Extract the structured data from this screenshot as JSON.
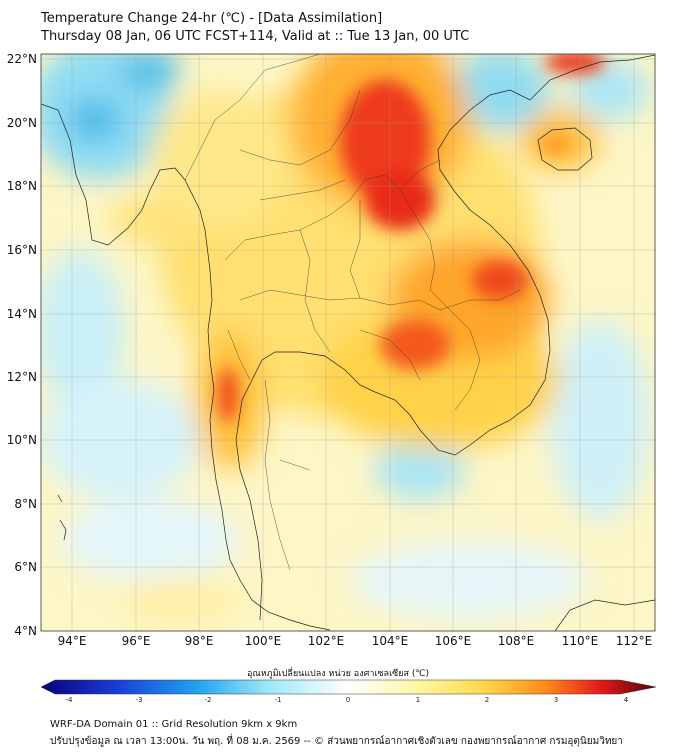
{
  "header": {
    "title_line1": "Temperature Change 24-hr (℃) - [Data Assimilation]",
    "title_line2": "Thursday 08 Jan, 06 UTC FCST+114, Valid at :: Tue 13 Jan, 00 UTC"
  },
  "map": {
    "lat_labels": [
      "22°N",
      "20°N",
      "18°N",
      "16°N",
      "14°N",
      "12°N",
      "10°N",
      "8°N",
      "6°N",
      "4°N"
    ],
    "lon_labels": [
      "94°E",
      "96°E",
      "98°E",
      "100°E",
      "102°E",
      "104°E",
      "106°E",
      "108°E",
      "110°E",
      "112°E"
    ]
  },
  "colorbar": {
    "title": "อุณหภูมิเปลี่ยนแปลง หน่วย องศาเซลเซียส (℃)",
    "ticks": [
      "-4",
      "-3",
      "-2",
      "-1",
      "0",
      "1",
      "2",
      "3",
      "4"
    ],
    "min": -4,
    "max": 4,
    "low_color": "#08007a",
    "zero_color": "#ffffff",
    "high_color": "#5a0000"
  },
  "footer": {
    "line1": "WRF-DA Domain 01 :: Grid Resolution 9km x 9km",
    "line2": "ปรับปรุงข้อมูล ณ เวลา 13:00น. วัน พฤ. ที่ 08 ม.ค. 2569 -- © ส่วนพยากรณ์อากาศเชิงตัวเลข กองพยากรณ์อากาศ กรมอุตุนิยมวิทยา"
  }
}
